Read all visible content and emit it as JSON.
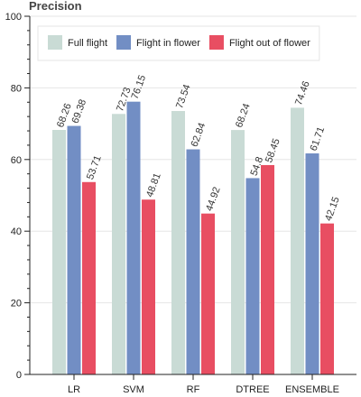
{
  "chart_data": {
    "type": "bar",
    "title": "Precision",
    "xlabel": "",
    "ylabel": "",
    "ylim": [
      0,
      100
    ],
    "yticks": [
      0,
      20,
      40,
      60,
      80,
      100
    ],
    "grid": true,
    "legend_position": "top-left",
    "categories": [
      "LR",
      "SVM",
      "RF",
      "DTREE",
      "ENSEMBLE"
    ],
    "series": [
      {
        "name": "Full flight",
        "color": "#c9dbd5",
        "values": [
          68.26,
          72.73,
          73.54,
          68.24,
          74.46
        ]
      },
      {
        "name": "Flight in flower",
        "color": "#728ec4",
        "values": [
          69.38,
          76.15,
          62.84,
          54.8,
          61.71
        ]
      },
      {
        "name": "Flight out of flower",
        "color": "#e84e62",
        "values": [
          53.71,
          48.81,
          44.92,
          58.45,
          42.15
        ]
      }
    ]
  }
}
